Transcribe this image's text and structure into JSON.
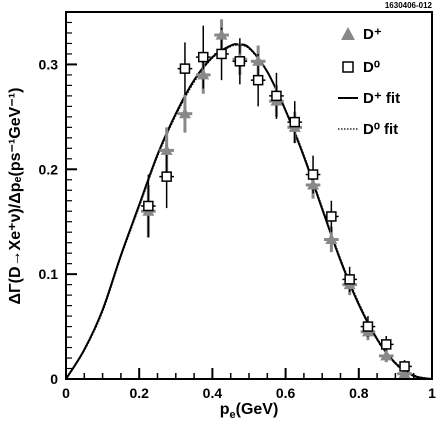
{
  "figure_id": "1630406-012",
  "chart_data": {
    "type": "scatter",
    "xlabel_base": "p",
    "xlabel_sub": "e",
    "xlabel_unit": "(GeV)",
    "ylabel": "ΔΓ(D→Xe⁺ν)/Δpₑ(ps⁻¹GeV⁻¹)",
    "xlim": [
      0,
      1
    ],
    "ylim": [
      0,
      0.35
    ],
    "x_ticks": [
      0,
      0.2,
      0.4,
      0.6,
      0.8,
      1
    ],
    "x_tick_labels": [
      "0",
      "0.2",
      "0.4",
      "0.6",
      "0.8",
      "1"
    ],
    "y_ticks": [
      0,
      0.1,
      0.2,
      0.3
    ],
    "y_tick_labels": [
      "0",
      "0.1",
      "0.2",
      "0.3"
    ],
    "grid": false,
    "legend_position": "top-right",
    "series": [
      {
        "name": "D⁺",
        "marker": "filled-triangle",
        "color": "#888888",
        "points": [
          {
            "x": 0.225,
            "y": 0.16,
            "xerr": 0.02,
            "yerr": 0.025
          },
          {
            "x": 0.275,
            "y": 0.218,
            "xerr": 0.02,
            "yerr": 0.022
          },
          {
            "x": 0.325,
            "y": 0.253,
            "xerr": 0.02,
            "yerr": 0.018
          },
          {
            "x": 0.375,
            "y": 0.29,
            "xerr": 0.02,
            "yerr": 0.018
          },
          {
            "x": 0.425,
            "y": 0.328,
            "xerr": 0.02,
            "yerr": 0.015
          },
          {
            "x": 0.475,
            "y": 0.305,
            "xerr": 0.02,
            "yerr": 0.015
          },
          {
            "x": 0.525,
            "y": 0.303,
            "xerr": 0.02,
            "yerr": 0.015
          },
          {
            "x": 0.575,
            "y": 0.265,
            "xerr": 0.02,
            "yerr": 0.015
          },
          {
            "x": 0.625,
            "y": 0.24,
            "xerr": 0.02,
            "yerr": 0.015
          },
          {
            "x": 0.675,
            "y": 0.185,
            "xerr": 0.02,
            "yerr": 0.013
          },
          {
            "x": 0.725,
            "y": 0.133,
            "xerr": 0.02,
            "yerr": 0.012
          },
          {
            "x": 0.775,
            "y": 0.09,
            "xerr": 0.02,
            "yerr": 0.01
          },
          {
            "x": 0.825,
            "y": 0.045,
            "xerr": 0.02,
            "yerr": 0.008
          },
          {
            "x": 0.875,
            "y": 0.022,
            "xerr": 0.02,
            "yerr": 0.006
          },
          {
            "x": 0.925,
            "y": 0.005,
            "xerr": 0.02,
            "yerr": 0.004
          }
        ]
      },
      {
        "name": "D⁰",
        "marker": "open-square",
        "color": "#000000",
        "points": [
          {
            "x": 0.225,
            "y": 0.165,
            "xerr": 0.02,
            "yerr": 0.03
          },
          {
            "x": 0.275,
            "y": 0.193,
            "xerr": 0.02,
            "yerr": 0.03
          },
          {
            "x": 0.325,
            "y": 0.296,
            "xerr": 0.02,
            "yerr": 0.025
          },
          {
            "x": 0.375,
            "y": 0.307,
            "xerr": 0.02,
            "yerr": 0.03
          },
          {
            "x": 0.425,
            "y": 0.31,
            "xerr": 0.02,
            "yerr": 0.025
          },
          {
            "x": 0.475,
            "y": 0.303,
            "xerr": 0.02,
            "yerr": 0.022
          },
          {
            "x": 0.525,
            "y": 0.285,
            "xerr": 0.02,
            "yerr": 0.025
          },
          {
            "x": 0.575,
            "y": 0.27,
            "xerr": 0.02,
            "yerr": 0.022
          },
          {
            "x": 0.625,
            "y": 0.245,
            "xerr": 0.02,
            "yerr": 0.02
          },
          {
            "x": 0.675,
            "y": 0.195,
            "xerr": 0.02,
            "yerr": 0.018
          },
          {
            "x": 0.725,
            "y": 0.155,
            "xerr": 0.02,
            "yerr": 0.015
          },
          {
            "x": 0.775,
            "y": 0.095,
            "xerr": 0.02,
            "yerr": 0.012
          },
          {
            "x": 0.825,
            "y": 0.05,
            "xerr": 0.02,
            "yerr": 0.01
          },
          {
            "x": 0.875,
            "y": 0.033,
            "xerr": 0.02,
            "yerr": 0.008
          },
          {
            "x": 0.925,
            "y": 0.012,
            "xerr": 0.02,
            "yerr": 0.006
          }
        ]
      }
    ],
    "curves": [
      {
        "name": "D⁺ fit",
        "style": "solid",
        "points": [
          [
            0,
            0
          ],
          [
            0.05,
            0.028
          ],
          [
            0.1,
            0.066
          ],
          [
            0.15,
            0.118
          ],
          [
            0.2,
            0.166
          ],
          [
            0.25,
            0.214
          ],
          [
            0.3,
            0.253
          ],
          [
            0.35,
            0.285
          ],
          [
            0.4,
            0.307
          ],
          [
            0.45,
            0.318
          ],
          [
            0.47,
            0.319
          ],
          [
            0.5,
            0.316
          ],
          [
            0.55,
            0.293
          ],
          [
            0.6,
            0.256
          ],
          [
            0.65,
            0.212
          ],
          [
            0.7,
            0.162
          ],
          [
            0.75,
            0.113
          ],
          [
            0.8,
            0.071
          ],
          [
            0.85,
            0.038
          ],
          [
            0.9,
            0.015
          ],
          [
            0.95,
            0.003
          ],
          [
            1.0,
            0
          ]
        ]
      },
      {
        "name": "D⁰ fit",
        "style": "dotted",
        "points": [
          [
            0,
            0
          ],
          [
            0.05,
            0.027
          ],
          [
            0.1,
            0.064
          ],
          [
            0.15,
            0.116
          ],
          [
            0.2,
            0.164
          ],
          [
            0.25,
            0.212
          ],
          [
            0.3,
            0.251
          ],
          [
            0.35,
            0.283
          ],
          [
            0.4,
            0.306
          ],
          [
            0.45,
            0.317
          ],
          [
            0.47,
            0.318
          ],
          [
            0.5,
            0.315
          ],
          [
            0.55,
            0.293
          ],
          [
            0.6,
            0.257
          ],
          [
            0.65,
            0.214
          ],
          [
            0.7,
            0.164
          ],
          [
            0.75,
            0.115
          ],
          [
            0.8,
            0.073
          ],
          [
            0.85,
            0.039
          ],
          [
            0.9,
            0.016
          ],
          [
            0.95,
            0.004
          ],
          [
            1.0,
            0
          ]
        ]
      }
    ],
    "legend": [
      {
        "label": "D⁺",
        "symbol": "filled-triangle"
      },
      {
        "label": "D⁰",
        "symbol": "open-square"
      },
      {
        "label": "D⁺ fit",
        "symbol": "solid-line"
      },
      {
        "label": "D⁰ fit",
        "symbol": "dotted-line"
      }
    ]
  }
}
